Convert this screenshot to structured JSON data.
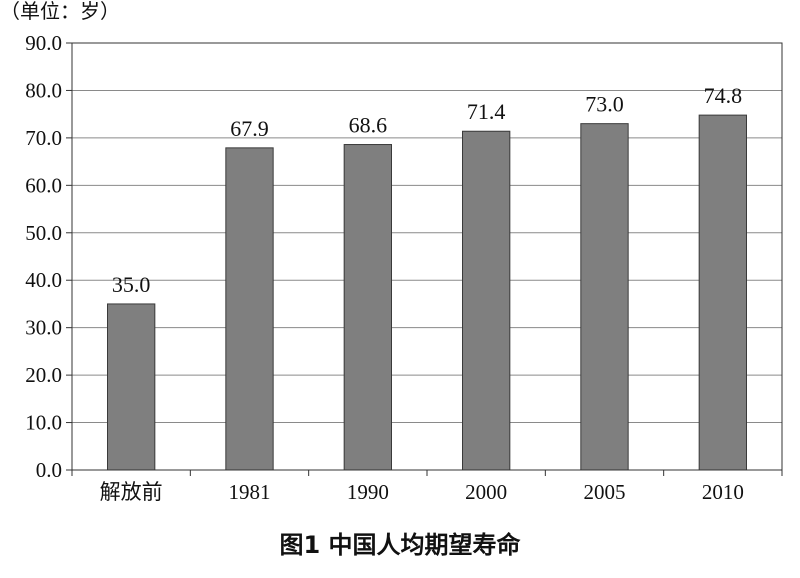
{
  "chart_data": {
    "type": "bar",
    "unit_label": "（单位：岁）",
    "caption": "图1  中国人均期望寿命",
    "categories": [
      "解放前",
      "1981",
      "1990",
      "2000",
      "2005",
      "2010"
    ],
    "values": [
      35.0,
      67.9,
      68.6,
      71.4,
      73.0,
      74.8
    ],
    "value_labels": [
      "35.0",
      "67.9",
      "68.6",
      "71.4",
      "73.0",
      "74.8"
    ],
    "ylim": [
      0,
      90
    ],
    "yticks": [
      "0.0",
      "10.0",
      "20.0",
      "30.0",
      "40.0",
      "50.0",
      "60.0",
      "70.0",
      "80.0",
      "90.0"
    ],
    "grid": true,
    "bar_color": "#7f7f7f",
    "bar_edge_color": "#3a3a3a"
  }
}
